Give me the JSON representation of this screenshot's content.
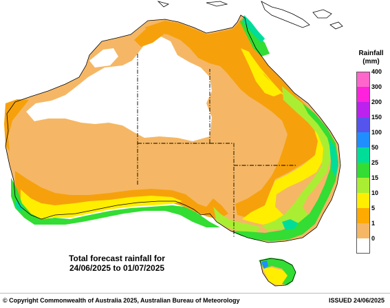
{
  "legend": {
    "title_line1": "Rainfall",
    "title_line2": "(mm)",
    "items": [
      {
        "label": "400",
        "color": "#ff66cc"
      },
      {
        "label": "300",
        "color": "#ff22dd"
      },
      {
        "label": "200",
        "color": "#bb22ee"
      },
      {
        "label": "150",
        "color": "#5555ee"
      },
      {
        "label": "100",
        "color": "#1f8fff"
      },
      {
        "label": "50",
        "color": "#00dd99"
      },
      {
        "label": "25",
        "color": "#33dd33"
      },
      {
        "label": "15",
        "color": "#aaee33"
      },
      {
        "label": "10",
        "color": "#ffee00"
      },
      {
        "label": "5",
        "color": "#ffaa00"
      },
      {
        "label": "1",
        "color": "#f5b765"
      },
      {
        "label": "0",
        "color": "#ffffff"
      }
    ]
  },
  "forecast": {
    "title": "Total forecast rainfall for",
    "period": "24/06/2025 to 01/07/2025"
  },
  "footer": {
    "copyright": "© Copyright Commonwealth of Australia 2025, Australian Bureau of Meteorology",
    "issued": "ISSUED 24/06/2025"
  }
}
